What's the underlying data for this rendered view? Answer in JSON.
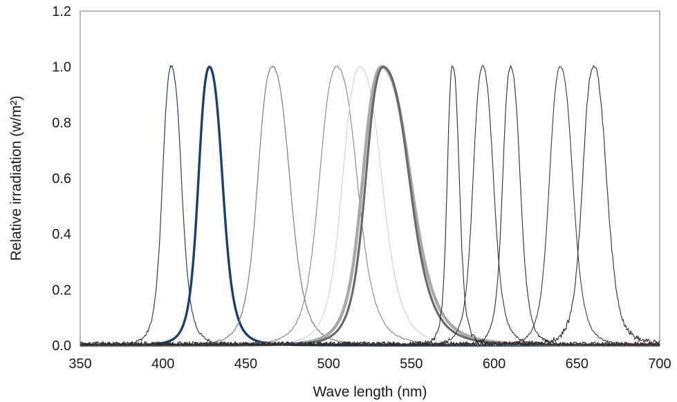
{
  "chart_data": {
    "type": "line",
    "title": "",
    "xlabel": "Wave length (nm)",
    "ylabel": "Relative irradiation (w/m²)",
    "xlim": [
      350,
      700
    ],
    "ylim": [
      0,
      1.2
    ],
    "xticks": [
      350,
      400,
      450,
      500,
      550,
      600,
      650,
      700
    ],
    "yticks": [
      0.0,
      0.2,
      0.4,
      0.6,
      0.8,
      1.0,
      1.2
    ],
    "xtick_labels": [
      "350",
      "400",
      "450",
      "500",
      "550",
      "600",
      "650",
      "700"
    ],
    "ytick_labels": [
      "0.0",
      "0.2",
      "0.4",
      "0.6",
      "0.8",
      "1.0",
      "1.2"
    ],
    "grid": false,
    "legend": "none",
    "series": [
      {
        "peak": 405,
        "hwhm_left": 6,
        "hwhm_right": 7,
        "color": "#2c3e55",
        "width": 1.2,
        "noise": 0.012
      },
      {
        "peak": 428,
        "hwhm_left": 7.5,
        "hwhm_right": 9,
        "color": "#1b3f6e",
        "width": 3.4,
        "noise": 0
      },
      {
        "peak": 466,
        "hwhm_left": 10,
        "hwhm_right": 12,
        "color": "#7a7a7a",
        "width": 1.2,
        "noise": 0.006
      },
      {
        "peak": 505,
        "hwhm_left": 12,
        "hwhm_right": 14,
        "color": "#8c8c8c",
        "width": 1.2,
        "noise": 0.005
      },
      {
        "peak": 519,
        "hwhm_left": 12,
        "hwhm_right": 15,
        "color": "#d2d2d2",
        "width": 1.2,
        "noise": 0
      },
      {
        "peak": 532,
        "hwhm_left": 13,
        "hwhm_right": 20,
        "color": "#a8a8a8",
        "width": 4.5,
        "noise": 0
      },
      {
        "peak": 533,
        "hwhm_left": 12,
        "hwhm_right": 18,
        "color": "#686868",
        "width": 3.2,
        "noise": 0
      },
      {
        "peak": 575,
        "hwhm_left": 3.8,
        "hwhm_right": 4.5,
        "color": "#2a2a2a",
        "width": 1.1,
        "noise": 0.018
      },
      {
        "peak": 593,
        "hwhm_left": 6.5,
        "hwhm_right": 7.5,
        "color": "#2f2f2f",
        "width": 1.1,
        "noise": 0.008
      },
      {
        "peak": 610,
        "hwhm_left": 5.5,
        "hwhm_right": 6.5,
        "color": "#2b2b2b",
        "width": 1.1,
        "noise": 0.01
      },
      {
        "peak": 640,
        "hwhm_left": 7.5,
        "hwhm_right": 8.5,
        "color": "#4a3030",
        "width": 1.1,
        "noise": 0.006
      },
      {
        "peak": 660,
        "hwhm_left": 7.5,
        "hwhm_right": 9,
        "color": "#2a2a2a",
        "width": 1.1,
        "noise": 0.02
      }
    ]
  }
}
